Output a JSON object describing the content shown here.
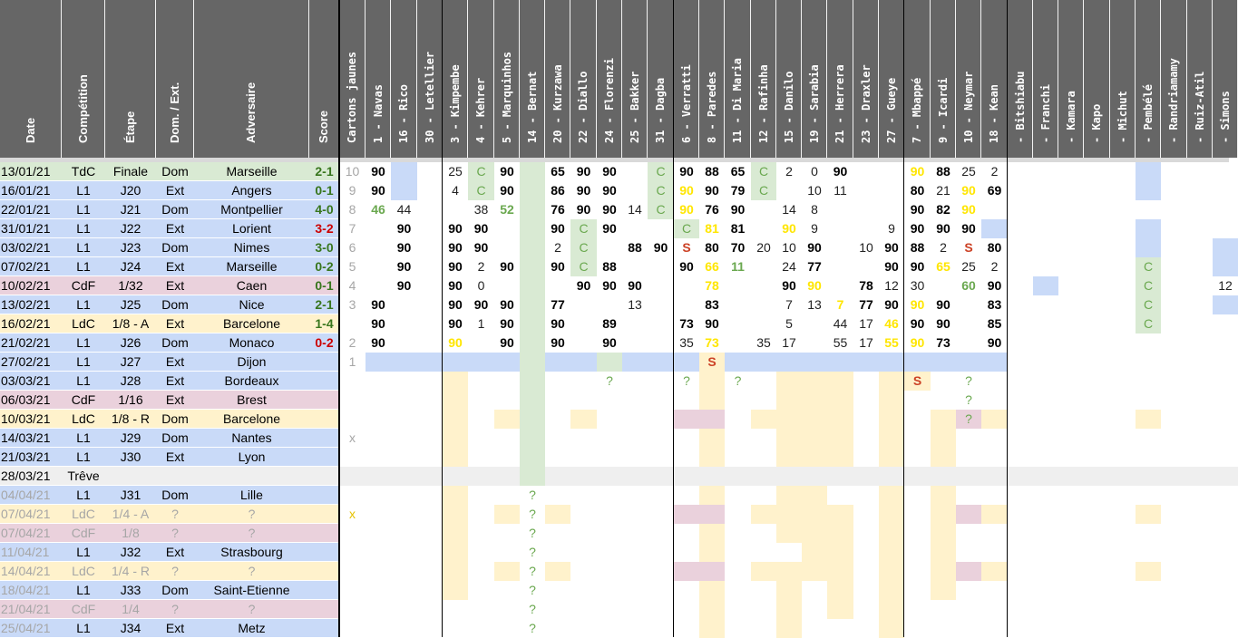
{
  "headers": [
    "Date",
    "Compétition",
    "Étape",
    "Dom. / Ext.",
    "Adversaire",
    "Score",
    "Cartons jaunes"
  ],
  "players": [
    "1 - Navas",
    "16 - Rico",
    "30 - Letellier",
    "3 - Kimpembe",
    "4 - Kehrer",
    "5 - Marquinhos",
    "14 - Bernat",
    "20 - Kurzawa",
    "22 - Diallo",
    "24 - Florenzi",
    "25 - Bakker",
    "31 - Dagba",
    "6 - Verratti",
    "8 - Paredes",
    "11 - Di Maria",
    "12 - Rafinha",
    "15 - Danilo",
    "19 - Sarabia",
    "21 - Herrera",
    "23 - Draxler",
    "27 - Gueye",
    "7 - Mbappé",
    "9 - Icardi",
    "10 - Neymar",
    "18 - Kean",
    "- Bitshiabu",
    "- Franchi",
    "- Kamara",
    "- Kapo",
    "- Michut",
    "- Pembélé",
    "- Randriamamy",
    "- Ruiz-Atil",
    "- Simons"
  ],
  "colors": {
    "header_bg": "#666666",
    "l1": "#c9daf8",
    "cdf": "#ead1dc",
    "ldc": "#fff2cc",
    "tdc": "#d9ead3",
    "treve": "#efefef",
    "bench_green": "#d9ead3",
    "injury_yellow": "#fff2cc",
    "suspended_red": "#ead1dc",
    "yellow_text": "#ffe600",
    "green_text": "#6aa84f"
  },
  "matches": [
    {
      "date": "13/01/21",
      "comp": "TdC",
      "stage": "Finale",
      "venue": "Dom",
      "opponent": "Marseille",
      "score": "2-1",
      "cards": "10",
      "style": "tdc",
      "result": "w"
    },
    {
      "date": "16/01/21",
      "comp": "L1",
      "stage": "J20",
      "venue": "Ext",
      "opponent": "Angers",
      "score": "0-1",
      "cards": "9",
      "style": "l1",
      "result": "w"
    },
    {
      "date": "22/01/21",
      "comp": "L1",
      "stage": "J21",
      "venue": "Dom",
      "opponent": "Montpellier",
      "score": "4-0",
      "cards": "8",
      "style": "l1",
      "result": "w"
    },
    {
      "date": "31/01/21",
      "comp": "L1",
      "stage": "J22",
      "venue": "Ext",
      "opponent": "Lorient",
      "score": "3-2",
      "cards": "7",
      "style": "l1",
      "result": "l"
    },
    {
      "date": "03/02/21",
      "comp": "L1",
      "stage": "J23",
      "venue": "Dom",
      "opponent": "Nimes",
      "score": "3-0",
      "cards": "6",
      "style": "l1",
      "result": "w"
    },
    {
      "date": "07/02/21",
      "comp": "L1",
      "stage": "J24",
      "venue": "Ext",
      "opponent": "Marseille",
      "score": "0-2",
      "cards": "5",
      "style": "l1",
      "result": "w"
    },
    {
      "date": "10/02/21",
      "comp": "CdF",
      "stage": "1/32",
      "venue": "Ext",
      "opponent": "Caen",
      "score": "0-1",
      "cards": "4",
      "style": "cdf",
      "result": "w"
    },
    {
      "date": "13/02/21",
      "comp": "L1",
      "stage": "J25",
      "venue": "Dom",
      "opponent": "Nice",
      "score": "2-1",
      "cards": "3",
      "style": "l1",
      "result": "w"
    },
    {
      "date": "16/02/21",
      "comp": "LdC",
      "stage": "1/8 - A",
      "venue": "Ext",
      "opponent": "Barcelone",
      "score": "1-4",
      "cards": "",
      "style": "ldc",
      "result": "w"
    },
    {
      "date": "21/02/21",
      "comp": "L1",
      "stage": "J26",
      "venue": "Dom",
      "opponent": "Monaco",
      "score": "0-2",
      "cards": "2",
      "style": "l1",
      "result": "l"
    },
    {
      "date": "27/02/21",
      "comp": "L1",
      "stage": "J27",
      "venue": "Ext",
      "opponent": "Dijon",
      "score": "",
      "cards": "1",
      "style": "l1",
      "result": ""
    },
    {
      "date": "03/03/21",
      "comp": "L1",
      "stage": "J28",
      "venue": "Ext",
      "opponent": "Bordeaux",
      "score": "",
      "cards": "",
      "style": "l1",
      "result": ""
    },
    {
      "date": "06/03/21",
      "comp": "CdF",
      "stage": "1/16",
      "venue": "Ext",
      "opponent": "Brest",
      "score": "",
      "cards": "",
      "style": "cdf",
      "result": ""
    },
    {
      "date": "10/03/21",
      "comp": "LdC",
      "stage": "1/8 - R",
      "venue": "Dom",
      "opponent": "Barcelone",
      "score": "",
      "cards": "",
      "style": "ldc",
      "result": ""
    },
    {
      "date": "14/03/21",
      "comp": "L1",
      "stage": "J29",
      "venue": "Dom",
      "opponent": "Nantes",
      "score": "",
      "cards": "x",
      "style": "l1",
      "result": ""
    },
    {
      "date": "21/03/21",
      "comp": "L1",
      "stage": "J30",
      "venue": "Ext",
      "opponent": "Lyon",
      "score": "",
      "cards": "",
      "style": "l1",
      "result": ""
    },
    {
      "date": "28/03/21",
      "comp": "Trêve",
      "stage": "",
      "venue": "",
      "opponent": "",
      "score": "",
      "cards": "",
      "style": "treve",
      "result": ""
    },
    {
      "date": "04/04/21",
      "comp": "L1",
      "stage": "J31",
      "venue": "Dom",
      "opponent": "Lille",
      "score": "",
      "cards": "",
      "style": "l1",
      "result": "",
      "gdate": true
    },
    {
      "date": "07/04/21",
      "comp": "LdC",
      "stage": "1/4 - A",
      "venue": "?",
      "opponent": "?",
      "score": "",
      "cards": "x",
      "style": "ldc",
      "result": "",
      "gall": true
    },
    {
      "date": "07/04/21",
      "comp": "CdF",
      "stage": "1/8",
      "venue": "?",
      "opponent": "?",
      "score": "",
      "cards": "",
      "style": "cdf",
      "result": "",
      "gall": true
    },
    {
      "date": "11/04/21",
      "comp": "L1",
      "stage": "J32",
      "venue": "Ext",
      "opponent": "Strasbourg",
      "score": "",
      "cards": "",
      "style": "l1",
      "result": "",
      "gdate": true
    },
    {
      "date": "14/04/21",
      "comp": "LdC",
      "stage": "1/4 - R",
      "venue": "?",
      "opponent": "?",
      "score": "",
      "cards": "",
      "style": "ldc",
      "result": "",
      "gall": true
    },
    {
      "date": "18/04/21",
      "comp": "L1",
      "stage": "J33",
      "venue": "Dom",
      "opponent": "Saint-Etienne",
      "score": "",
      "cards": "",
      "style": "l1",
      "result": "",
      "gdate": true
    },
    {
      "date": "21/04/21",
      "comp": "CdF",
      "stage": "1/4",
      "venue": "?",
      "opponent": "?",
      "score": "",
      "cards": "",
      "style": "cdf",
      "result": "",
      "gall": true
    },
    {
      "date": "25/04/21",
      "comp": "L1",
      "stage": "J34",
      "venue": "Ext",
      "opponent": "Metz",
      "score": "",
      "cards": "",
      "style": "l1",
      "result": "",
      "gdate": true
    }
  ],
  "grid": [
    [
      "90",
      "B",
      "",
      "25",
      "gC",
      "90",
      "g",
      "65",
      "90",
      "90",
      "",
      "gC",
      "90",
      "88",
      "65",
      "gC",
      "2",
      "0",
      "90",
      "",
      "",
      "Y90",
      "88",
      "25",
      "2",
      "",
      "",
      "",
      "",
      "",
      "B",
      "",
      "",
      ""
    ],
    [
      "90",
      "B",
      "",
      "4",
      "gC",
      "90",
      "g",
      "86",
      "90",
      "90",
      "",
      "gC",
      "Y90",
      "90",
      "79",
      "gC",
      "",
      "10",
      "11",
      "",
      "",
      "80",
      "21",
      "Y90",
      "69",
      "",
      "",
      "",
      "",
      "",
      "B",
      "",
      "",
      ""
    ],
    [
      "G46",
      "44",
      "",
      "",
      "38",
      "G52",
      "g",
      "76",
      "90",
      "90",
      "14",
      "gC",
      "Y90",
      "76",
      "90",
      "",
      "14",
      "8",
      "",
      "",
      "",
      "90",
      "82",
      "Y90",
      "",
      "",
      "",
      "",
      "",
      "",
      "",
      "",
      "",
      ""
    ],
    [
      "",
      "90",
      "",
      "90",
      "90",
      "",
      "g",
      "90",
      "gC",
      "90",
      "",
      "",
      "gC",
      "Y81",
      "81",
      "",
      "Y90",
      "9",
      "",
      "",
      "9",
      "90",
      "90",
      "90",
      "B",
      "",
      "",
      "",
      "",
      "",
      "B",
      "",
      "",
      ""
    ],
    [
      "",
      "90",
      "",
      "90",
      "90",
      "",
      "g",
      "2",
      "gC",
      "",
      "88",
      "90",
      "S",
      "80",
      "70",
      "20",
      "10",
      "90",
      "",
      "10",
      "90",
      "88",
      "2",
      "S",
      "80",
      "",
      "",
      "",
      "",
      "",
      "B",
      "",
      "",
      "B"
    ],
    [
      "",
      "90",
      "",
      "90",
      "2",
      "90",
      "g",
      "90",
      "gC",
      "88",
      "",
      "",
      "90",
      "Y66",
      "G11",
      "",
      "24",
      "77",
      "",
      "",
      "90",
      "90",
      "Y65",
      "25",
      "2",
      "",
      "",
      "",
      "",
      "",
      "gC",
      "",
      "",
      "B"
    ],
    [
      "",
      "90",
      "",
      "90",
      "0",
      "",
      "g",
      "",
      "90",
      "90",
      "90",
      "",
      "",
      "Y78",
      "",
      "",
      "90",
      "Y90",
      "",
      "78",
      "12",
      "30",
      "",
      "G60",
      "90",
      "",
      "B",
      "",
      "",
      "",
      "gC",
      "",
      "",
      "12"
    ],
    [
      "90",
      "",
      "",
      "90",
      "90",
      "90",
      "g",
      "77",
      "",
      "",
      "13",
      "",
      "",
      "83",
      "",
      "",
      "7",
      "13",
      "Y7",
      "77",
      "90",
      "Y90",
      "90",
      "",
      "83",
      "",
      "",
      "",
      "",
      "",
      "gC",
      "",
      "",
      "B"
    ],
    [
      "90",
      "",
      "",
      "90",
      "1",
      "90",
      "g",
      "90",
      "",
      "89",
      "",
      "",
      "73",
      "90",
      "",
      "",
      "5",
      "",
      "44",
      "17",
      "Y46",
      "90",
      "90",
      "",
      "85",
      "",
      "",
      "",
      "",
      "",
      "gC",
      "",
      "",
      ""
    ],
    [
      "90",
      "",
      "",
      "Y90",
      "",
      "90",
      "g",
      "90",
      "",
      "90",
      "",
      "",
      "35",
      "Y73",
      "",
      "35",
      "17",
      "",
      "55",
      "17",
      "Y55",
      "Y90",
      "73",
      "",
      "90",
      "",
      "",
      "",
      "",
      "",
      "",
      "",
      "",
      ""
    ],
    [
      "B",
      "B",
      "B",
      "B",
      "B",
      "B",
      "g",
      "B",
      "B",
      "g",
      "B",
      "B",
      "B",
      "Sy",
      "B",
      "B",
      "B",
      "B",
      "B",
      "B",
      "B",
      "B",
      "B",
      "B",
      "B",
      "",
      "",
      "",
      "",
      "",
      "",
      "",
      "",
      ""
    ],
    [
      "",
      "",
      "",
      "y",
      "",
      "",
      "g",
      "",
      "",
      "?",
      "",
      "",
      "?",
      "y",
      "?",
      "",
      "y",
      "y",
      "y",
      "",
      "y",
      "Sy",
      "",
      "?",
      "",
      "",
      "",
      "",
      "",
      "",
      "",
      "",
      "",
      ""
    ],
    [
      "",
      "",
      "",
      "y",
      "",
      "",
      "g",
      "",
      "",
      "",
      "",
      "",
      "",
      "y",
      "",
      "",
      "y",
      "y",
      "y",
      "",
      "y",
      "",
      "",
      "?",
      "",
      "",
      "",
      "",
      "",
      "",
      "",
      "",
      "",
      ""
    ],
    [
      "",
      "",
      "",
      "y",
      "",
      "y",
      "g",
      "",
      "y",
      "",
      "",
      "",
      "r",
      "r",
      "",
      "y",
      "y",
      "y",
      "y",
      "",
      "y",
      "",
      "y",
      "?r",
      "y",
      "",
      "",
      "",
      "",
      "",
      "y",
      "",
      "",
      ""
    ],
    [
      "",
      "",
      "",
      "y",
      "",
      "",
      "g",
      "",
      "",
      "",
      "",
      "",
      "",
      "y",
      "",
      "",
      "y",
      "y",
      "y",
      "",
      "y",
      "",
      "y",
      "",
      "",
      "",
      "",
      "",
      "",
      "",
      "",
      "",
      "",
      ""
    ],
    [
      "",
      "",
      "",
      "y",
      "",
      "",
      "g",
      "",
      "",
      "",
      "",
      "",
      "",
      "y",
      "",
      "",
      "y",
      "y",
      "y",
      "",
      "y",
      "",
      "y",
      "",
      "",
      "",
      "",
      "",
      "",
      "",
      "",
      "",
      "",
      ""
    ],
    [
      "t",
      "t",
      "t",
      "t",
      "t",
      "t",
      "g",
      "t",
      "t",
      "t",
      "t",
      "t",
      "t",
      "t",
      "t",
      "t",
      "t",
      "t",
      "t",
      "t",
      "t",
      "t",
      "t",
      "t",
      "t",
      "t",
      "t",
      "t",
      "t",
      "t",
      "t",
      "t",
      "t",
      "t"
    ],
    [
      "",
      "",
      "",
      "y",
      "",
      "",
      "?",
      "",
      "",
      "",
      "",
      "",
      "",
      "y",
      "",
      "",
      "y",
      "y",
      "",
      "",
      "y",
      "",
      "y",
      "",
      "",
      "",
      "",
      "",
      "",
      "",
      "",
      "",
      "",
      ""
    ],
    [
      "",
      "",
      "",
      "y",
      "",
      "y",
      "?",
      "y",
      "",
      "",
      "",
      "",
      "r",
      "r",
      "",
      "y",
      "y",
      "y",
      "y",
      "",
      "y",
      "",
      "y",
      "r",
      "y",
      "",
      "",
      "",
      "",
      "",
      "y",
      "",
      "",
      ""
    ],
    [
      "",
      "",
      "",
      "y",
      "",
      "",
      "?",
      "",
      "",
      "",
      "",
      "",
      "",
      "y",
      "",
      "",
      "y",
      "y",
      "y",
      "",
      "y",
      "",
      "y",
      "",
      "",
      "",
      "",
      "",
      "",
      "",
      "",
      "",
      "",
      ""
    ],
    [
      "",
      "",
      "",
      "y",
      "",
      "",
      "?",
      "",
      "",
      "",
      "",
      "",
      "",
      "y",
      "",
      "",
      "",
      "y",
      "y",
      "",
      "y",
      "",
      "y",
      "",
      "",
      "",
      "",
      "",
      "",
      "",
      "",
      "",
      "",
      ""
    ],
    [
      "",
      "",
      "",
      "y",
      "",
      "y",
      "?",
      "y",
      "",
      "",
      "",
      "",
      "r",
      "r",
      "",
      "y",
      "y",
      "y",
      "y",
      "",
      "y",
      "",
      "y",
      "r",
      "y",
      "",
      "",
      "",
      "",
      "",
      "y",
      "",
      "",
      ""
    ],
    [
      "",
      "",
      "",
      "y",
      "",
      "",
      "?",
      "",
      "",
      "",
      "",
      "",
      "",
      "y",
      "",
      "",
      "y",
      "",
      "y",
      "",
      "y",
      "",
      "y",
      "",
      "",
      "",
      "",
      "",
      "",
      "",
      "",
      "",
      "",
      ""
    ],
    [
      "",
      "",
      "",
      "",
      "",
      "",
      "?",
      "",
      "",
      "",
      "",
      "",
      "",
      "y",
      "",
      "",
      "y",
      "",
      "y",
      "",
      "y",
      "",
      "",
      "",
      "",
      "",
      "",
      "",
      "",
      "",
      "",
      "",
      "",
      ""
    ],
    [
      "",
      "",
      "",
      "",
      "",
      "",
      "?",
      "",
      "",
      "",
      "",
      "",
      "",
      "y",
      "",
      "",
      "y",
      "",
      "",
      "",
      "y",
      "",
      "",
      "",
      "",
      "",
      "",
      "",
      "",
      "",
      "",
      "",
      "",
      ""
    ]
  ]
}
